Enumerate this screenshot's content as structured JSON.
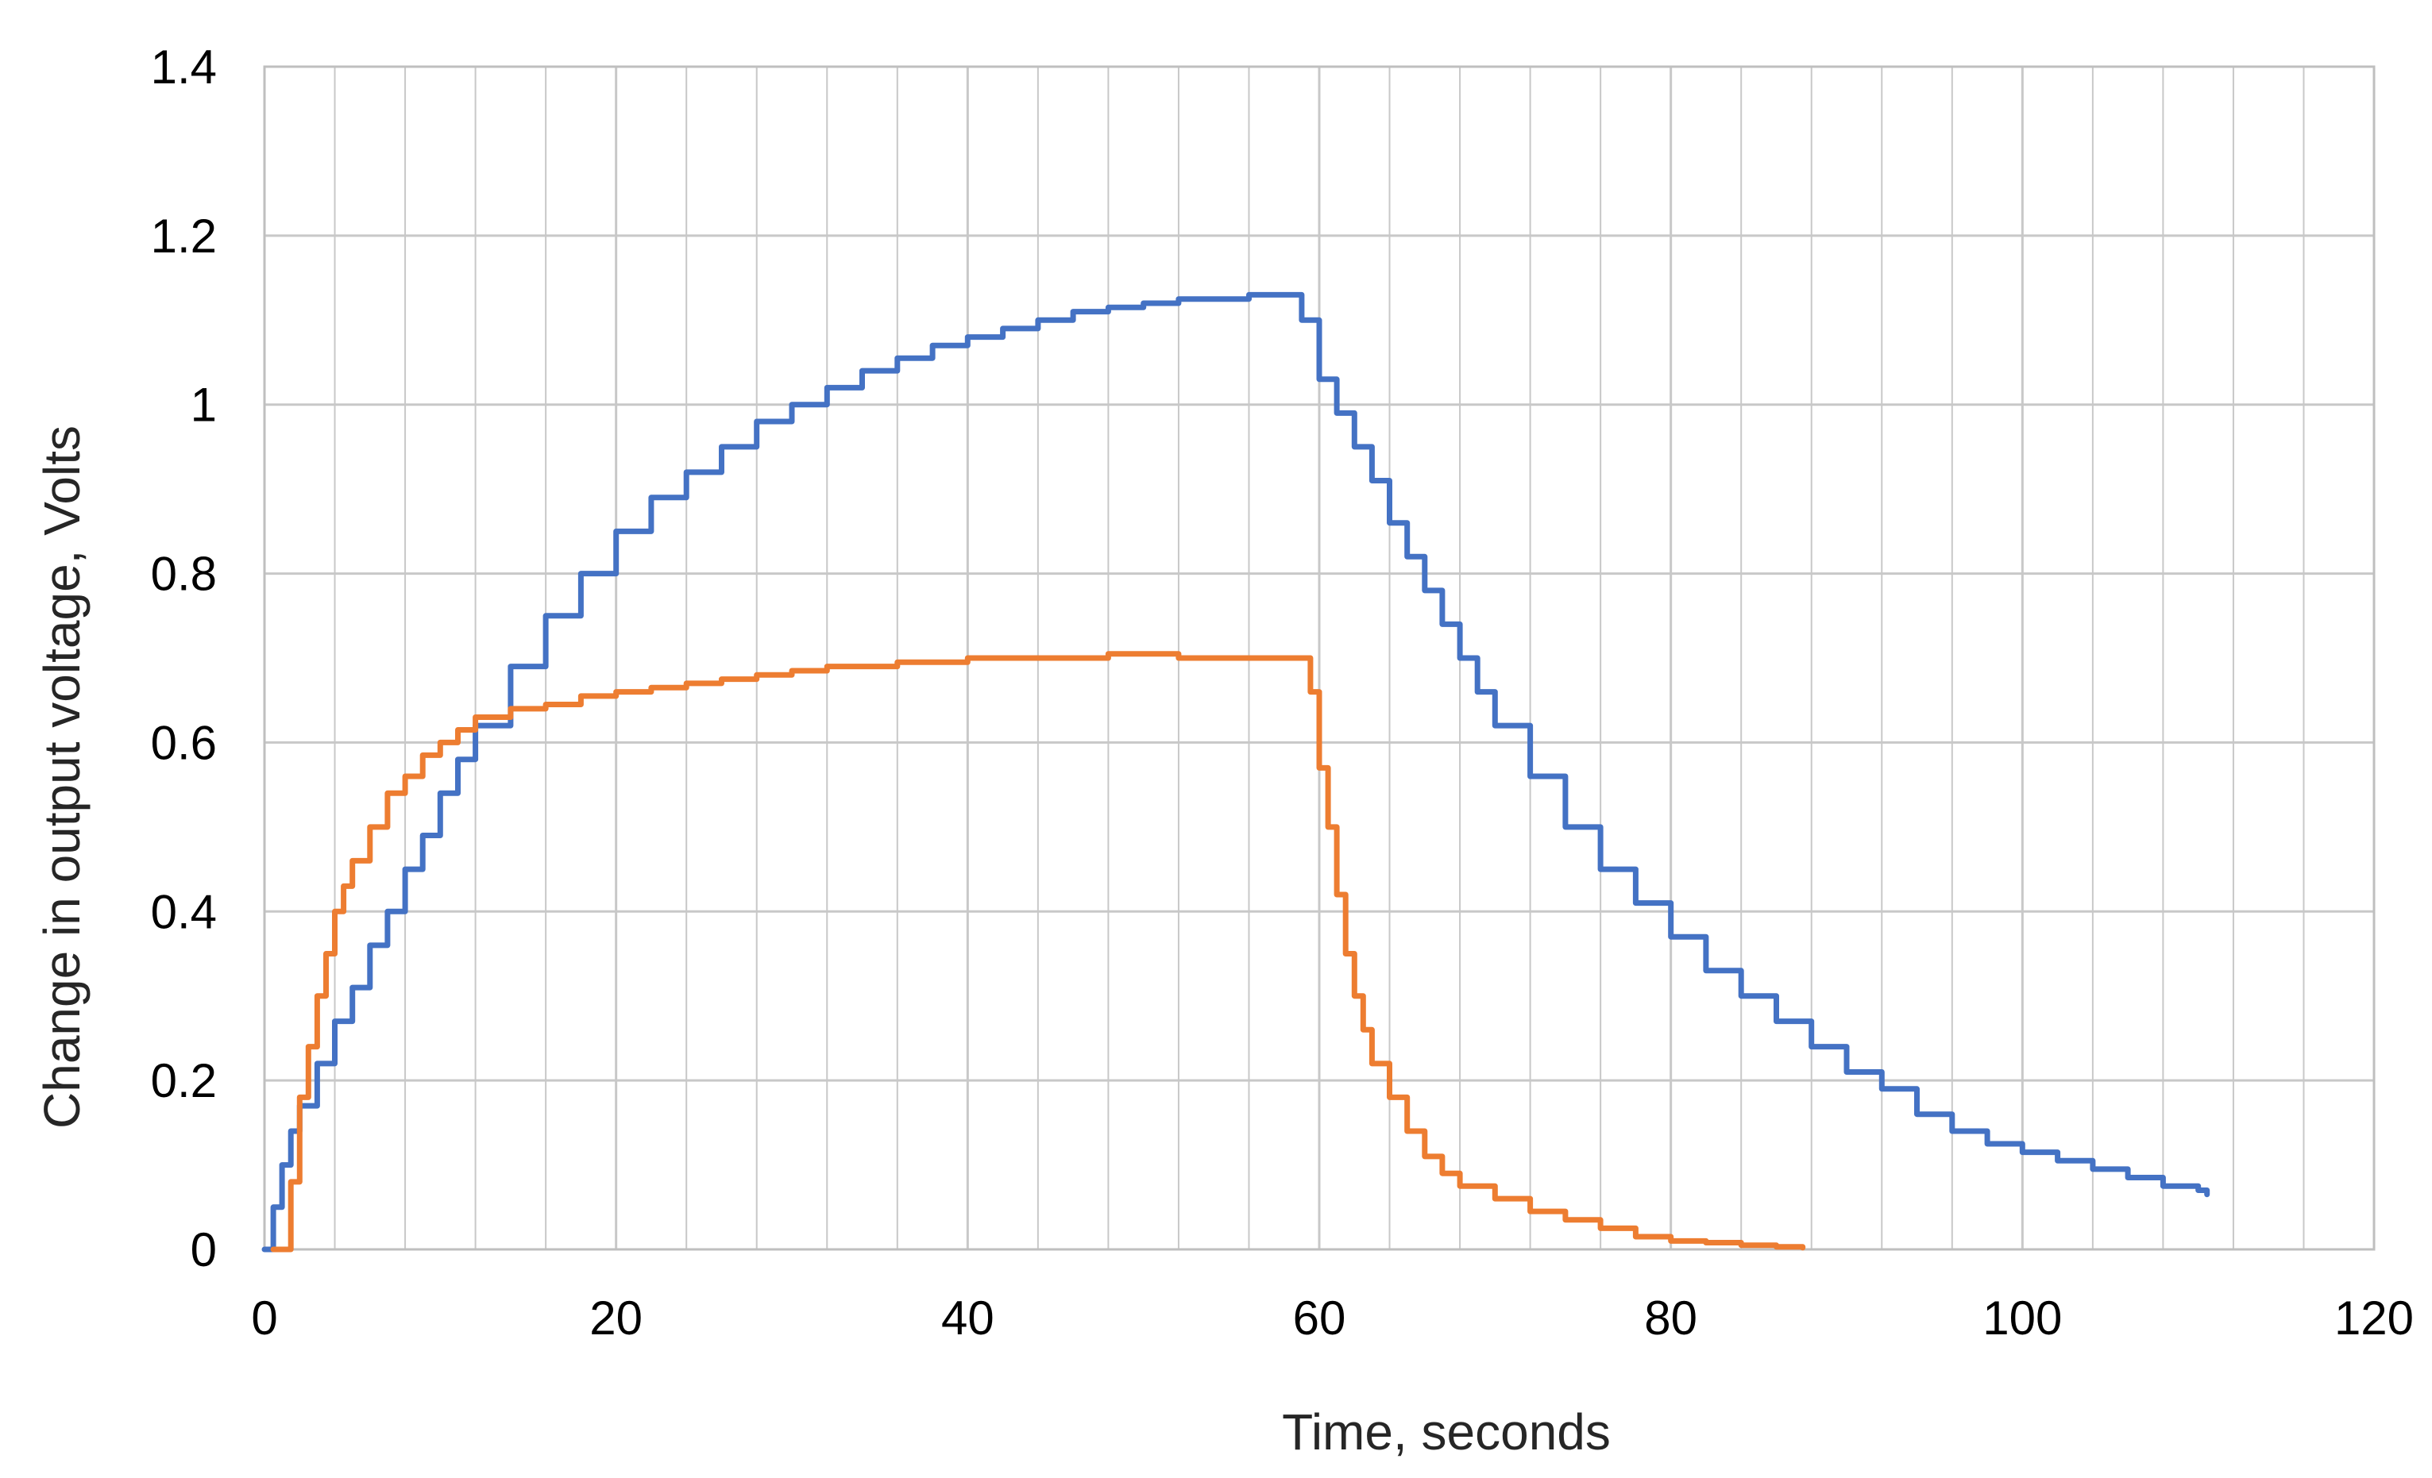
{
  "chart_data": {
    "type": "line",
    "xlabel": "Time, seconds",
    "ylabel": "Change in output voltage, Volts",
    "xlim": [
      0,
      120
    ],
    "ylim": [
      0,
      1.4
    ],
    "x_ticks": [
      0,
      20,
      40,
      60,
      80,
      100,
      120
    ],
    "x_tick_labels": [
      "0",
      "20",
      "40",
      "60",
      "80",
      "100",
      "120"
    ],
    "y_ticks": [
      0,
      0.2,
      0.4,
      0.6,
      0.8,
      1,
      1.2,
      1.4
    ],
    "y_tick_labels": [
      "0",
      "0.2",
      "0.4",
      "0.6",
      "0.8",
      "1",
      "1.2",
      "1.4"
    ],
    "x_minor_step": 4,
    "grid": true,
    "legend": "none",
    "colors": {
      "grid": "#c8c8c8",
      "axes": "#bfbfbf"
    },
    "series": [
      {
        "color": "#4472c4",
        "points": [
          [
            0,
            0
          ],
          [
            0.5,
            0.05
          ],
          [
            1,
            0.1
          ],
          [
            1.5,
            0.14
          ],
          [
            2,
            0.17
          ],
          [
            3,
            0.22
          ],
          [
            4,
            0.27
          ],
          [
            5,
            0.31
          ],
          [
            6,
            0.36
          ],
          [
            7,
            0.4
          ],
          [
            8,
            0.45
          ],
          [
            9,
            0.49
          ],
          [
            10,
            0.54
          ],
          [
            11,
            0.58
          ],
          [
            12,
            0.62
          ],
          [
            14,
            0.69
          ],
          [
            16,
            0.75
          ],
          [
            18,
            0.8
          ],
          [
            20,
            0.85
          ],
          [
            22,
            0.89
          ],
          [
            24,
            0.92
          ],
          [
            26,
            0.95
          ],
          [
            28,
            0.98
          ],
          [
            30,
            1.0
          ],
          [
            32,
            1.02
          ],
          [
            34,
            1.04
          ],
          [
            36,
            1.055
          ],
          [
            38,
            1.07
          ],
          [
            40,
            1.08
          ],
          [
            42,
            1.09
          ],
          [
            44,
            1.1
          ],
          [
            46,
            1.11
          ],
          [
            48,
            1.115
          ],
          [
            50,
            1.12
          ],
          [
            52,
            1.125
          ],
          [
            54,
            1.125
          ],
          [
            56,
            1.13
          ],
          [
            58,
            1.13
          ],
          [
            59,
            1.1
          ],
          [
            60,
            1.03
          ],
          [
            61,
            0.99
          ],
          [
            62,
            0.95
          ],
          [
            63,
            0.91
          ],
          [
            64,
            0.86
          ],
          [
            65,
            0.82
          ],
          [
            66,
            0.78
          ],
          [
            67,
            0.74
          ],
          [
            68,
            0.7
          ],
          [
            69,
            0.66
          ],
          [
            70,
            0.62
          ],
          [
            72,
            0.56
          ],
          [
            74,
            0.5
          ],
          [
            76,
            0.45
          ],
          [
            78,
            0.41
          ],
          [
            80,
            0.37
          ],
          [
            82,
            0.33
          ],
          [
            84,
            0.3
          ],
          [
            86,
            0.27
          ],
          [
            88,
            0.24
          ],
          [
            90,
            0.21
          ],
          [
            92,
            0.19
          ],
          [
            94,
            0.16
          ],
          [
            96,
            0.14
          ],
          [
            98,
            0.125
          ],
          [
            100,
            0.115
          ],
          [
            102,
            0.105
          ],
          [
            104,
            0.095
          ],
          [
            106,
            0.085
          ],
          [
            108,
            0.075
          ],
          [
            110,
            0.07
          ],
          [
            110.5,
            0.065
          ]
        ]
      },
      {
        "color": "#ed7d31",
        "points": [
          [
            0.5,
            0
          ],
          [
            1,
            0
          ],
          [
            1.5,
            0.08
          ],
          [
            2,
            0.18
          ],
          [
            2.5,
            0.24
          ],
          [
            3,
            0.3
          ],
          [
            3.5,
            0.35
          ],
          [
            4,
            0.4
          ],
          [
            4.5,
            0.43
          ],
          [
            5,
            0.46
          ],
          [
            6,
            0.5
          ],
          [
            7,
            0.54
          ],
          [
            8,
            0.56
          ],
          [
            9,
            0.585
          ],
          [
            10,
            0.6
          ],
          [
            11,
            0.615
          ],
          [
            12,
            0.63
          ],
          [
            14,
            0.64
          ],
          [
            16,
            0.645
          ],
          [
            18,
            0.655
          ],
          [
            20,
            0.66
          ],
          [
            22,
            0.665
          ],
          [
            24,
            0.67
          ],
          [
            26,
            0.675
          ],
          [
            28,
            0.68
          ],
          [
            30,
            0.685
          ],
          [
            32,
            0.69
          ],
          [
            34,
            0.69
          ],
          [
            36,
            0.695
          ],
          [
            38,
            0.695
          ],
          [
            40,
            0.7
          ],
          [
            44,
            0.7
          ],
          [
            48,
            0.705
          ],
          [
            52,
            0.7
          ],
          [
            56,
            0.7
          ],
          [
            59,
            0.7
          ],
          [
            59.5,
            0.66
          ],
          [
            60,
            0.57
          ],
          [
            60.5,
            0.5
          ],
          [
            61,
            0.42
          ],
          [
            61.5,
            0.35
          ],
          [
            62,
            0.3
          ],
          [
            62.5,
            0.26
          ],
          [
            63,
            0.22
          ],
          [
            64,
            0.18
          ],
          [
            65,
            0.14
          ],
          [
            66,
            0.11
          ],
          [
            67,
            0.09
          ],
          [
            68,
            0.075
          ],
          [
            70,
            0.06
          ],
          [
            72,
            0.045
          ],
          [
            74,
            0.035
          ],
          [
            76,
            0.025
          ],
          [
            78,
            0.015
          ],
          [
            80,
            0.01
          ],
          [
            82,
            0.008
          ],
          [
            84,
            0.005
          ],
          [
            86,
            0.003
          ],
          [
            87.5,
            0.002
          ]
        ]
      }
    ]
  }
}
